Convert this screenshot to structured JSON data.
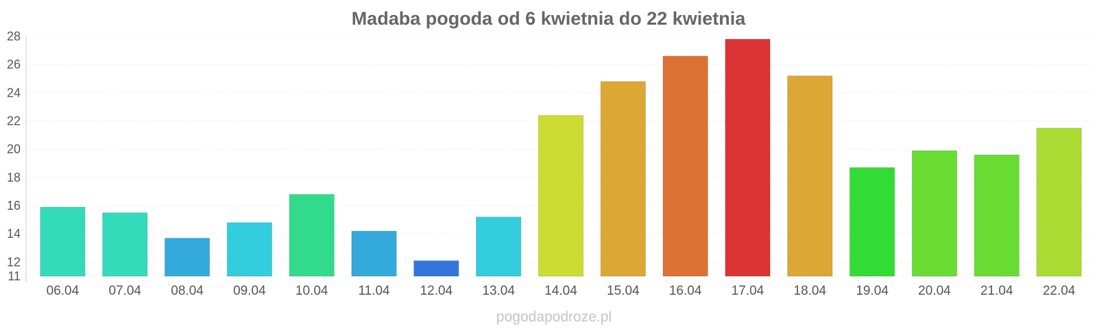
{
  "chart_data": {
    "type": "bar",
    "title": "Madaba pogoda od 6 kwietnia do 22 kwietnia",
    "xlabel": "",
    "ylabel": "",
    "categories": [
      "06.04",
      "07.04",
      "08.04",
      "09.04",
      "10.04",
      "11.04",
      "12.04",
      "13.04",
      "14.04",
      "15.04",
      "16.04",
      "17.04",
      "18.04",
      "19.04",
      "20.04",
      "21.04",
      "22.04"
    ],
    "values": [
      15.9,
      15.5,
      13.7,
      14.8,
      16.8,
      14.2,
      12.1,
      15.2,
      22.4,
      24.8,
      26.6,
      27.8,
      25.2,
      18.7,
      19.9,
      19.6,
      21.5
    ],
    "colors": [
      "#33dbbb",
      "#33dbbb",
      "#34a9dc",
      "#33cddd",
      "#33db8c",
      "#34a9dc",
      "#3475dc",
      "#33cddd",
      "#cddc33",
      "#dca734",
      "#dc7134",
      "#dc3434",
      "#dca734",
      "#33dc34",
      "#69dc33",
      "#69dc33",
      "#aadc33"
    ],
    "ylim": [
      11,
      28
    ],
    "yticks": [
      11,
      12,
      14,
      16,
      18,
      20,
      22,
      24,
      26,
      28
    ],
    "grid": true,
    "legend": "none"
  },
  "watermark": "pogodapodroze.pl"
}
